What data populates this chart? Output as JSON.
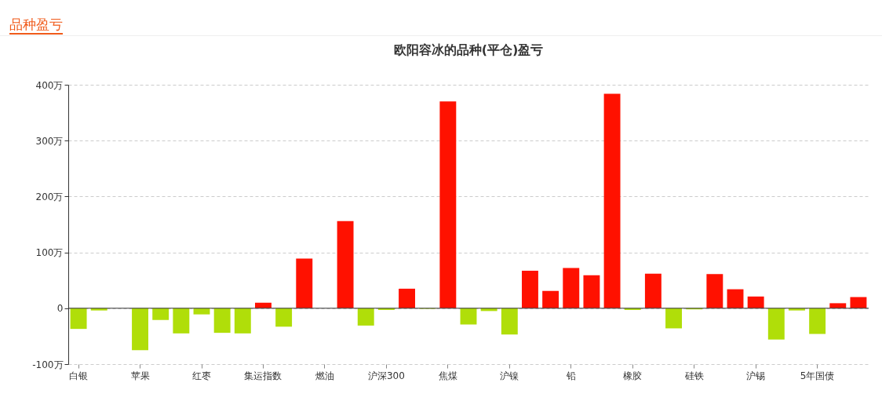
{
  "chart_data": {
    "type": "bar",
    "title": "欧阳容冰的品种(平仓)盈亏",
    "annotations": [
      "品种盈亏"
    ],
    "categories": [
      "白银",
      null,
      null,
      "苹果",
      null,
      null,
      "红枣",
      null,
      null,
      "集运指数",
      null,
      null,
      "燃油",
      null,
      null,
      "沪深300",
      null,
      null,
      "焦煤",
      null,
      null,
      "沪镍",
      null,
      null,
      "铅",
      null,
      null,
      "橡胶",
      null,
      null,
      "硅铁",
      null,
      null,
      "沪锡",
      null,
      null,
      "5年国债",
      null,
      null
    ],
    "values": [
      -37,
      -4,
      0,
      -75,
      -21,
      -45,
      -11,
      -44,
      -45,
      10,
      -33,
      89,
      0,
      156,
      -31,
      -3,
      35,
      -1,
      370,
      -29,
      -5,
      -47,
      67,
      31,
      72,
      59,
      384,
      -3,
      62,
      -36,
      -2,
      61,
      34,
      21,
      -56,
      -4,
      -46,
      9,
      20
    ],
    "colors": [
      "#b0de09",
      "#b0de09",
      "#b0de09",
      "#b0de09",
      "#b0de09",
      "#b0de09",
      "#b0de09",
      "#b0de09",
      "#b0de09",
      "#ff1100",
      "#b0de09",
      "#ff1100",
      "#b0de09",
      "#ff1100",
      "#b0de09",
      "#b0de09",
      "#ff1100",
      "#b0de09",
      "#ff1100",
      "#b0de09",
      "#b0de09",
      "#b0de09",
      "#ff1100",
      "#ff1100",
      "#ff1100",
      "#ff1100",
      "#ff1100",
      "#b0de09",
      "#ff1100",
      "#b0de09",
      "#b0de09",
      "#ff1100",
      "#ff1100",
      "#ff1100",
      "#b0de09",
      "#b0de09",
      "#b0de09",
      "#ff1100",
      "#ff1100"
    ],
    "ylim": [
      -100,
      400
    ],
    "yticks": [
      {
        "value": -100,
        "label": "-100万"
      },
      0,
      {
        "value": 100,
        "label": "100万"
      },
      {
        "value": 200,
        "label": "200万"
      },
      {
        "value": 300,
        "label": "300万"
      },
      {
        "value": 400,
        "label": "400万"
      }
    ],
    "grid": "y"
  }
}
